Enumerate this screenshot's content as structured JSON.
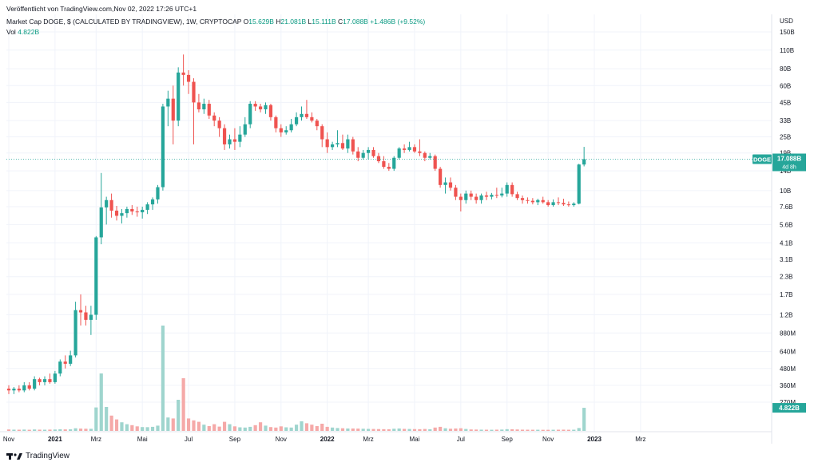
{
  "header": {
    "published": "Veröffentlicht von TradingView.com,Nov 02, 2022 17:26 UTC+1",
    "symbol": "Market Cap DOGE, $ (CALCULATED BY TRADINGVIEW), 1W, CRYPTOCAP",
    "ohlc": {
      "o_label": "O",
      "o": "15.629B",
      "h_label": "H",
      "h": "21.081B",
      "l_label": "L",
      "l": "15.111B",
      "c_label": "C",
      "c": "17.088B",
      "change": "+1.486B (+9.52%)"
    },
    "vol_label": "Vol",
    "vol_value": "4.822B"
  },
  "footer": {
    "brand": "TradingView"
  },
  "price_tag": {
    "symbol": "DOGE",
    "value": "17.088B",
    "countdown": "4d 8h"
  },
  "volume_tag": {
    "value": "4.822B"
  },
  "colors": {
    "up": "#26a69a",
    "down": "#ef5350",
    "vol_up": "#9fd5ce",
    "vol_down": "#f5a9a8",
    "last_line": "#26a69a",
    "grid": "#f0f3fa",
    "axis_text": "#131722"
  },
  "chart_data": {
    "type": "candlestick",
    "scale": "log",
    "axis_unit": "USD",
    "y_ticks": [
      "150B",
      "110B",
      "80B",
      "60B",
      "45B",
      "33B",
      "25B",
      "19B",
      "14B",
      "10B",
      "7.6B",
      "5.6B",
      "4.1B",
      "3.1B",
      "2.3B",
      "1.7B",
      "1.2B",
      "880M",
      "640M",
      "480M",
      "360M",
      "270M"
    ],
    "y_tick_values": [
      150,
      110,
      80,
      60,
      45,
      33,
      25,
      19,
      14,
      10,
      7.6,
      5.6,
      4.1,
      3.1,
      2.3,
      1.7,
      1.2,
      0.88,
      0.64,
      0.48,
      0.36,
      0.27
    ],
    "x_ticks": [
      {
        "label": "Nov",
        "week": 0
      },
      {
        "label": "2021",
        "week": 9
      },
      {
        "label": "Mrz",
        "week": 17
      },
      {
        "label": "Mai",
        "week": 26
      },
      {
        "label": "Jul",
        "week": 35
      },
      {
        "label": "Sep",
        "week": 44
      },
      {
        "label": "Nov",
        "week": 53
      },
      {
        "label": "2022",
        "week": 62
      },
      {
        "label": "Mrz",
        "week": 70
      },
      {
        "label": "Mai",
        "week": 79
      },
      {
        "label": "Jul",
        "week": 88
      },
      {
        "label": "Sep",
        "week": 97
      },
      {
        "label": "Nov",
        "week": 105
      },
      {
        "label": "2023",
        "week": 114
      },
      {
        "label": "Mrz",
        "week": 123
      }
    ],
    "last_value": 17.088,
    "candles": [
      [
        0.34,
        0.36,
        0.31,
        0.33,
        0.3
      ],
      [
        0.33,
        0.35,
        0.31,
        0.34,
        0.26
      ],
      [
        0.34,
        0.36,
        0.32,
        0.33,
        0.25
      ],
      [
        0.33,
        0.38,
        0.32,
        0.36,
        0.28
      ],
      [
        0.36,
        0.38,
        0.33,
        0.34,
        0.24
      ],
      [
        0.34,
        0.42,
        0.33,
        0.4,
        0.3
      ],
      [
        0.4,
        0.41,
        0.36,
        0.38,
        0.26
      ],
      [
        0.38,
        0.42,
        0.36,
        0.4,
        0.25
      ],
      [
        0.4,
        0.44,
        0.37,
        0.38,
        0.27
      ],
      [
        0.38,
        0.46,
        0.37,
        0.44,
        0.29
      ],
      [
        0.44,
        0.56,
        0.42,
        0.54,
        0.34
      ],
      [
        0.54,
        0.6,
        0.48,
        0.52,
        0.31
      ],
      [
        0.52,
        0.65,
        0.5,
        0.6,
        0.33
      ],
      [
        0.6,
        1.5,
        0.58,
        1.3,
        0.55
      ],
      [
        1.3,
        1.7,
        1.0,
        1.25,
        0.48
      ],
      [
        1.25,
        1.4,
        1.0,
        1.1,
        0.45
      ],
      [
        1.1,
        1.4,
        0.85,
        1.2,
        0.44
      ],
      [
        1.2,
        4.6,
        1.1,
        4.5,
        4.9
      ],
      [
        4.5,
        13.5,
        4.0,
        7.5,
        12.0
      ],
      [
        7.5,
        9.0,
        5.6,
        8.5,
        5.0
      ],
      [
        8.5,
        9.5,
        6.3,
        7.1,
        3.2
      ],
      [
        7.1,
        7.7,
        6.0,
        6.5,
        2.4
      ],
      [
        6.5,
        7.3,
        5.7,
        6.8,
        1.8
      ],
      [
        6.8,
        7.6,
        6.3,
        7.3,
        1.4
      ],
      [
        7.3,
        7.8,
        6.6,
        7.0,
        1.2
      ],
      [
        7.0,
        7.6,
        6.4,
        6.9,
        0.95
      ],
      [
        6.9,
        7.6,
        6.2,
        7.2,
        0.8
      ],
      [
        7.2,
        8.2,
        6.7,
        7.9,
        0.78
      ],
      [
        7.9,
        8.9,
        7.2,
        8.6,
        0.85
      ],
      [
        8.6,
        11.0,
        8.0,
        10.6,
        1.1
      ],
      [
        10.6,
        44.0,
        10.0,
        42.0,
        22.0
      ],
      [
        42.0,
        55.0,
        30.0,
        48.0,
        2.8
      ],
      [
        48.0,
        60.0,
        22.0,
        33.0,
        2.6
      ],
      [
        33.0,
        82.0,
        30.0,
        75.0,
        6.5
      ],
      [
        75.0,
        102.0,
        60.0,
        72.0,
        11.0
      ],
      [
        72.0,
        78.0,
        52.0,
        64.0,
        2.6
      ],
      [
        64.0,
        68.0,
        22.0,
        45.0,
        2.2
      ],
      [
        45.0,
        52.0,
        38.0,
        40.0,
        1.9
      ],
      [
        40.0,
        48.0,
        37.0,
        44.0,
        1.3
      ],
      [
        44.0,
        47.0,
        34.0,
        36.0,
        1.0
      ],
      [
        36.0,
        38.0,
        30.0,
        33.0,
        1.4
      ],
      [
        33.0,
        35.0,
        25.0,
        29.0,
        0.9
      ],
      [
        29.0,
        31.0,
        20.0,
        22.0,
        1.9
      ],
      [
        22.0,
        26.0,
        20.5,
        24.0,
        1.4
      ],
      [
        24.0,
        29.0,
        20.0,
        23.0,
        0.95
      ],
      [
        23.0,
        30.0,
        21.0,
        26.0,
        0.75
      ],
      [
        26.0,
        35.0,
        25.0,
        31.0,
        0.7
      ],
      [
        31.0,
        46.0,
        29.0,
        44.0,
        0.85
      ],
      [
        44.0,
        46.0,
        39.0,
        42.0,
        1.2
      ],
      [
        42.0,
        44.0,
        38.0,
        40.0,
        1.8
      ],
      [
        40.0,
        45.0,
        37.0,
        43.0,
        1.1
      ],
      [
        43.0,
        44.0,
        33.0,
        35.0,
        0.8
      ],
      [
        35.0,
        36.0,
        27.0,
        29.0,
        0.7
      ],
      [
        29.0,
        31.0,
        25.0,
        27.0,
        0.95
      ],
      [
        27.0,
        30.0,
        26.0,
        28.0,
        0.75
      ],
      [
        28.0,
        34.0,
        27.0,
        31.0,
        0.7
      ],
      [
        31.0,
        38.0,
        30.0,
        35.0,
        1.3
      ],
      [
        35.0,
        42.0,
        33.0,
        37.0,
        2.0
      ],
      [
        37.0,
        47.0,
        34.0,
        35.0,
        1.6
      ],
      [
        35.0,
        38.0,
        32.0,
        33.0,
        1.3
      ],
      [
        33.0,
        34.0,
        28.0,
        30.0,
        1.0
      ],
      [
        30.0,
        31.0,
        21.0,
        24.0,
        1.5
      ],
      [
        24.0,
        27.0,
        19.0,
        21.0,
        0.85
      ],
      [
        21.0,
        23.0,
        20.0,
        22.0,
        0.7
      ],
      [
        22.0,
        28.0,
        21.0,
        22.5,
        0.6
      ],
      [
        22.5,
        26.0,
        20.0,
        20.5,
        0.55
      ],
      [
        20.5,
        26.0,
        19.0,
        24.0,
        0.5
      ],
      [
        24.0,
        25.0,
        18.5,
        19.5,
        0.5
      ],
      [
        19.5,
        21.0,
        16.5,
        17.5,
        0.48
      ],
      [
        17.5,
        20.0,
        17.0,
        19.0,
        0.45
      ],
      [
        19.0,
        21.0,
        17.0,
        20.0,
        0.42
      ],
      [
        20.0,
        21.0,
        17.5,
        18.0,
        0.4
      ],
      [
        18.0,
        19.0,
        16.0,
        16.5,
        0.38
      ],
      [
        16.5,
        18.0,
        14.5,
        15.0,
        0.36
      ],
      [
        15.0,
        16.0,
        14.0,
        14.5,
        0.34
      ],
      [
        14.5,
        18.0,
        14.0,
        17.5,
        0.45
      ],
      [
        17.5,
        21.0,
        17.0,
        20.5,
        0.5
      ],
      [
        20.5,
        22.0,
        19.0,
        20.0,
        0.42
      ],
      [
        20.0,
        23.0,
        19.5,
        21.0,
        0.4
      ],
      [
        21.0,
        22.0,
        19.0,
        19.5,
        0.38
      ],
      [
        19.5,
        24.0,
        18.0,
        19.0,
        0.36
      ],
      [
        19.0,
        19.5,
        16.5,
        17.5,
        0.4
      ],
      [
        17.5,
        19.0,
        17.0,
        18.0,
        0.35
      ],
      [
        18.0,
        18.5,
        14.0,
        14.5,
        0.7
      ],
      [
        14.5,
        15.0,
        10.5,
        11.0,
        0.85
      ],
      [
        11.0,
        12.5,
        9.5,
        11.5,
        0.55
      ],
      [
        11.5,
        12.5,
        10.0,
        10.5,
        0.45
      ],
      [
        10.5,
        11.0,
        8.5,
        9.0,
        0.5
      ],
      [
        9.0,
        9.5,
        7.0,
        8.5,
        0.55
      ],
      [
        8.5,
        10.0,
        8.0,
        9.5,
        0.4
      ],
      [
        9.5,
        10.0,
        8.5,
        9.0,
        0.3
      ],
      [
        9.0,
        9.5,
        8.0,
        8.5,
        0.28
      ],
      [
        8.5,
        9.5,
        8.0,
        9.2,
        0.26
      ],
      [
        9.2,
        9.8,
        8.5,
        9.0,
        0.25
      ],
      [
        9.0,
        9.6,
        8.6,
        9.3,
        0.24
      ],
      [
        9.3,
        10.5,
        8.8,
        9.2,
        0.26
      ],
      [
        9.2,
        10.5,
        8.9,
        9.5,
        0.28
      ],
      [
        9.5,
        11.5,
        9.0,
        11.0,
        0.36
      ],
      [
        11.0,
        11.5,
        9.0,
        9.4,
        0.34
      ],
      [
        9.4,
        9.8,
        8.5,
        8.8,
        0.3
      ],
      [
        8.8,
        9.2,
        8.0,
        8.5,
        0.26
      ],
      [
        8.5,
        8.9,
        8.0,
        8.4,
        0.25
      ],
      [
        8.4,
        8.8,
        7.9,
        8.2,
        0.24
      ],
      [
        8.2,
        8.7,
        7.8,
        8.5,
        0.24
      ],
      [
        8.5,
        9.0,
        8.0,
        8.2,
        0.23
      ],
      [
        8.2,
        8.5,
        7.6,
        7.8,
        0.23
      ],
      [
        7.8,
        8.6,
        7.6,
        8.2,
        0.24
      ],
      [
        8.2,
        8.9,
        7.8,
        8.1,
        0.25
      ],
      [
        8.1,
        8.7,
        7.7,
        7.9,
        0.26
      ],
      [
        7.9,
        8.3,
        7.6,
        7.8,
        0.24
      ],
      [
        7.8,
        8.2,
        7.6,
        8.0,
        0.25
      ],
      [
        8.0,
        15.8,
        7.9,
        15.6,
        0.6
      ],
      [
        15.6,
        21.081,
        15.111,
        17.088,
        4.822
      ]
    ]
  }
}
